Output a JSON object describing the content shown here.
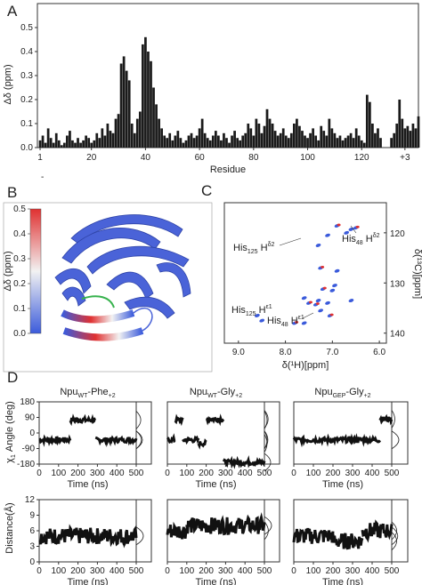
{
  "panels": {
    "a": "A",
    "b": "B",
    "c": "C",
    "d": "D"
  },
  "colors": {
    "bar": "#1a1a1a",
    "low": "#3b5bdb",
    "mid": "#f2f2f2",
    "high": "#e03131"
  },
  "chart_data": [
    {
      "type": "bar",
      "ylabel": "Δδ (ppm)",
      "xlabel": "Residue",
      "ylim": [
        0,
        0.6
      ],
      "yticks": [
        "0.0",
        "0.1",
        "0.2",
        "0.3",
        "0.4",
        "0.5"
      ],
      "xticks": [
        "1",
        "20",
        "40",
        "60",
        "80",
        "100",
        "120",
        "+3"
      ],
      "dash_label": "-",
      "x_range": [
        -1,
        140
      ],
      "values": [
        0.03,
        0.05,
        0.02,
        0.08,
        0.04,
        0.02,
        0.06,
        0.03,
        0.01,
        0.02,
        0.05,
        0.07,
        0.03,
        0.02,
        0.04,
        0.02,
        0.03,
        0.05,
        0.04,
        0.02,
        0.03,
        0.06,
        0.04,
        0.08,
        0.05,
        0.1,
        0.07,
        0.06,
        0.12,
        0.14,
        0.35,
        0.38,
        0.32,
        0.28,
        0.1,
        0.06,
        0.12,
        0.15,
        0.43,
        0.46,
        0.4,
        0.36,
        0.25,
        0.18,
        0.12,
        0.08,
        0.05,
        0.04,
        0.06,
        0.03,
        0.05,
        0.07,
        0.04,
        0.02,
        0.03,
        0.05,
        0.06,
        0.04,
        0.05,
        0.08,
        0.12,
        0.06,
        0.04,
        0.03,
        0.05,
        0.07,
        0.05,
        0.03,
        0.06,
        0.04,
        0.02,
        0.05,
        0.07,
        0.04,
        0.03,
        0.05,
        0.06,
        0.1,
        0.08,
        0.05,
        0.12,
        0.1,
        0.06,
        0.09,
        0.16,
        0.12,
        0.1,
        0.07,
        0.05,
        0.06,
        0.08,
        0.05,
        0.04,
        0.06,
        0.1,
        0.12,
        0.09,
        0.07,
        0.05,
        0.04,
        0.06,
        0.08,
        0.05,
        0.03,
        0.09,
        0.07,
        0.05,
        0.12,
        0.08,
        0.06,
        0.04,
        0.05,
        0.03,
        0.04,
        0.05,
        0.06,
        0.04,
        0.08,
        0.05,
        0.03,
        0.02,
        0.22,
        0.19,
        0.1,
        0.06,
        0.08,
        0.04,
        0.0,
        0.0,
        0.0,
        0.04,
        0.06,
        0.1,
        0.2,
        0.12,
        0.08,
        0.09,
        0.07,
        0.1,
        0.08,
        0.13
      ]
    },
    {
      "type": "scatter",
      "xlabel": "δ(¹H)[ppm]",
      "ylabel": "δ(¹³C)[ppm]",
      "xticks": [
        "9.0",
        "8.0",
        "7.0",
        "6.0"
      ],
      "yticks": [
        "120",
        "130",
        "140"
      ],
      "x": [
        6.5,
        6.6,
        6.7,
        6.9,
        7.1,
        7.3,
        7.25,
        6.9,
        6.95,
        7.2,
        7.0,
        7.6,
        7.5,
        6.6,
        7.3,
        7.35,
        7.1,
        7.25,
        7.05,
        8.6,
        8.5,
        7.8,
        7.6
      ],
      "y": [
        119,
        119.3,
        120,
        118.6,
        120.5,
        122.5,
        127,
        127.6,
        130.5,
        131.2,
        131.5,
        133,
        134,
        133.5,
        133.5,
        134.3,
        134,
        135.5,
        136.5,
        136.5,
        137.5,
        138,
        138
      ],
      "peak_labels": {
        "his125_hd2": "His",
        "his125_sub": "125",
        "his125_nuc": "H",
        "his125_sup": "δ2",
        "his48_hd2": "His",
        "his48_sub": "48",
        "his48_nuc": "H",
        "his48_sup": "δ2",
        "his125_he1": "His",
        "his125_he1_sub": "125",
        "his125_he1_nuc": "H",
        "his125_he1_sup": "ε1",
        "his48_he1": "His",
        "his48_he1_sub": "48",
        "his48_he1_nuc": "H",
        "his48_he1_sup": "ε1"
      }
    }
  ],
  "colorbar": {
    "label": "Δδ (ppm)",
    "ticks": [
      "0.5",
      "0.4",
      "0.3",
      "0.2",
      "0.1",
      "0.0"
    ]
  },
  "panel_d": {
    "titles": [
      {
        "main": "Npu",
        "sub": "WT",
        "rest": "-Phe",
        "sup": "+2"
      },
      {
        "main": "Npu",
        "sub": "WT",
        "rest": "-Gly",
        "sup": "+2"
      },
      {
        "main": "Npu",
        "sub": "GEP",
        "rest": "-Gly",
        "sup": "+2"
      }
    ],
    "top_ylabel": "χ",
    "top_ylabel_sub": "1",
    "top_ylabel_rest": " Angle (deg)",
    "top_yticks": [
      "180",
      "90",
      "0",
      "-90",
      "-180"
    ],
    "bottom_ylabel": "Distance(Å)",
    "bottom_yticks": [
      "12",
      "9",
      "6",
      "3",
      "0"
    ],
    "xticks": [
      "0",
      "100",
      "200",
      "300",
      "400",
      "500"
    ],
    "xlabel": "Time (ns)",
    "top_series": [
      [
        {
          "from": 0,
          "to": 160,
          "level": -40
        },
        {
          "from": 160,
          "to": 290,
          "level": 75
        },
        {
          "from": 290,
          "to": 500,
          "level": -40
        }
      ],
      [
        {
          "from": 0,
          "to": 40,
          "level": -40
        },
        {
          "from": 40,
          "to": 80,
          "level": 75
        },
        {
          "from": 80,
          "to": 160,
          "level": -40
        },
        {
          "from": 160,
          "to": 200,
          "level": -60
        },
        {
          "from": 200,
          "to": 290,
          "level": 80
        },
        {
          "from": 290,
          "to": 500,
          "level": -170
        }
      ],
      [
        {
          "from": 0,
          "to": 440,
          "level": -40
        },
        {
          "from": 440,
          "to": 500,
          "level": 80
        }
      ]
    ],
    "bottom_series": [
      [
        {
          "from": 0,
          "to": 500,
          "level": 5
        }
      ],
      [
        {
          "from": 0,
          "to": 100,
          "level": 6
        },
        {
          "from": 100,
          "to": 500,
          "level": 7
        }
      ],
      [
        {
          "from": 0,
          "to": 200,
          "level": 5
        },
        {
          "from": 200,
          "to": 350,
          "level": 4
        },
        {
          "from": 350,
          "to": 500,
          "level": 6
        }
      ]
    ]
  }
}
